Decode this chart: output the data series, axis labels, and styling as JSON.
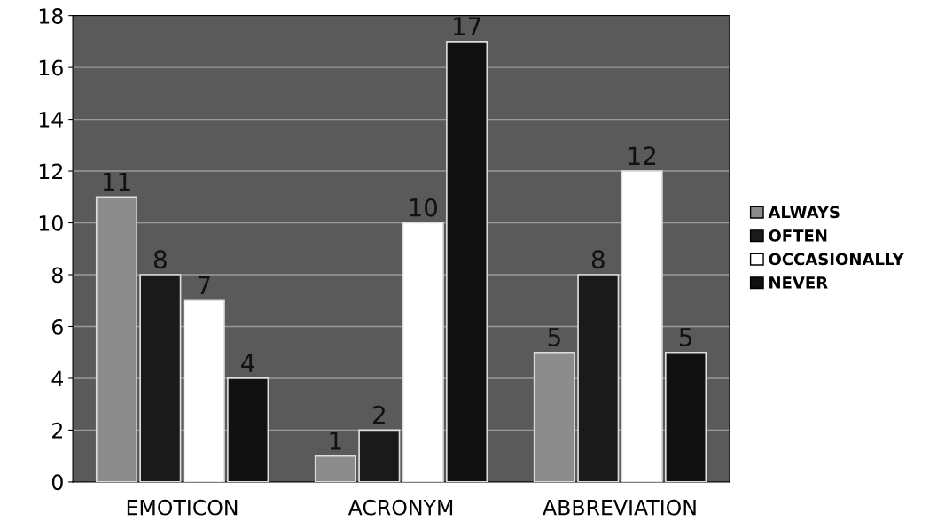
{
  "chart_data": {
    "type": "bar",
    "categories": [
      "EMOTICON",
      "ACRONYM",
      "ABBREVIATION"
    ],
    "series": [
      {
        "name": "ALWAYS",
        "color": "#8c8c8c",
        "values": [
          11,
          1,
          5
        ]
      },
      {
        "name": "OFTEN",
        "color": "#1a1a1a",
        "values": [
          8,
          2,
          8
        ]
      },
      {
        "name": "OCCASIONALLY",
        "color": "#ffffff",
        "values": [
          7,
          10,
          12
        ]
      },
      {
        "name": "NEVER",
        "color": "#111111",
        "values": [
          4,
          17,
          5
        ]
      }
    ],
    "ylim": [
      0,
      18
    ],
    "yticks": [
      0,
      2,
      4,
      6,
      8,
      10,
      12,
      14,
      16,
      18
    ],
    "grid": "y",
    "legend": "right",
    "data_labels": true
  }
}
